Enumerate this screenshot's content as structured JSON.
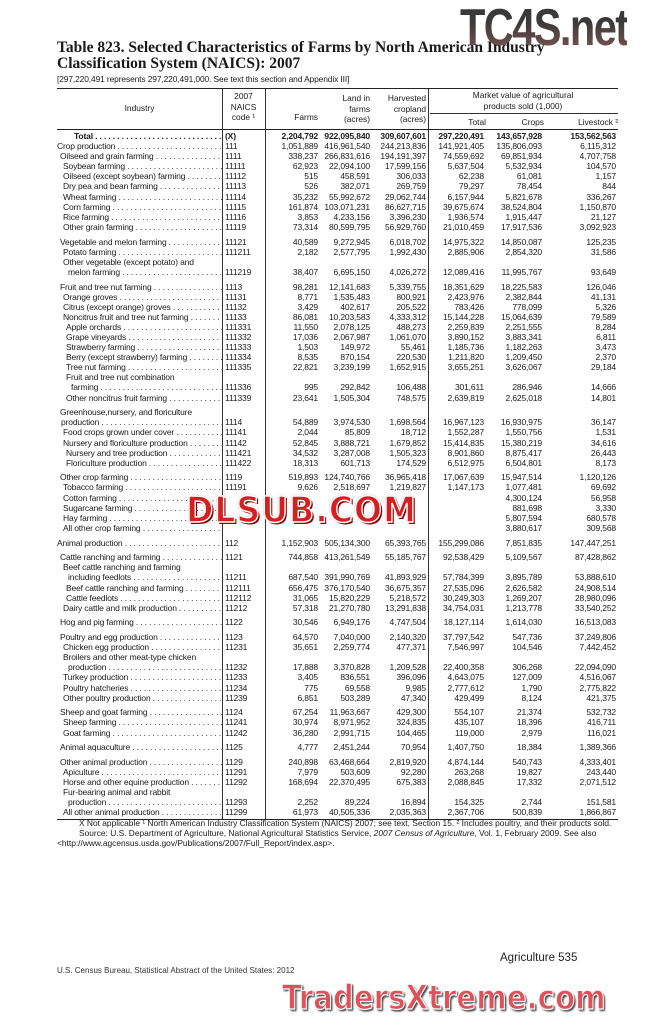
{
  "title": "Table 823. Selected Characteristics of Farms by North American Industry Classification System (NAICS): 2007",
  "subtitle": "[297,220,491 represents 297,220,491,000. See text this section and Appendix III]",
  "headers": {
    "industry": "Industry",
    "naics": [
      "2007",
      "NAICS",
      "code ¹"
    ],
    "farms": "Farms",
    "land": [
      "Land in",
      "farms",
      "(acres)"
    ],
    "harvested": [
      "Harvested",
      "cropland",
      "(acres)"
    ],
    "market": [
      "Market value of agricultural",
      "products sold (1,000)"
    ],
    "total": "Total",
    "crops": "Crops",
    "livestock": "Livestock ²"
  },
  "groups": [
    [
      {
        "label": "Total",
        "code": "(X)",
        "v": [
          "2,204,792",
          "922,095,840",
          "309,607,601",
          "297,220,491",
          "143,657,928",
          "153,562,563"
        ],
        "lvl": "total",
        "bold": true
      },
      {
        "label": "Crop production",
        "code": "111",
        "v": [
          "1,051,889",
          "416,961,540",
          "244,213,836",
          "141,921,405",
          "135,806,093",
          "6,115,312"
        ],
        "lvl": 0
      },
      {
        "label": "Oilseed and grain farming",
        "code": "1111",
        "v": [
          "338,237",
          "266,831,616",
          "194,191,397",
          "74,559,692",
          "69,851,934",
          "4,707,758"
        ],
        "lvl": 1
      },
      {
        "label": "Soybean farming",
        "code": "11111",
        "v": [
          "62,923",
          "22,094,100",
          "17,599,156",
          "5,637,504",
          "5,532,934",
          "104,570"
        ],
        "lvl": 2
      },
      {
        "label": "Oilseed (except soybean) farming",
        "code": "11112",
        "v": [
          "515",
          "458,591",
          "306,033",
          "62,238",
          "61,081",
          "1,157"
        ],
        "lvl": 2
      },
      {
        "label": "Dry pea and bean farming",
        "code": "11113",
        "v": [
          "526",
          "382,071",
          "269,759",
          "79,297",
          "78,454",
          "844"
        ],
        "lvl": 2
      },
      {
        "label": "Wheat farming",
        "code": "11114",
        "v": [
          "35,232",
          "55,992,672",
          "29,062,744",
          "6,157,944",
          "5,821,678",
          "336,267"
        ],
        "lvl": 2
      },
      {
        "label": "Corn farming",
        "code": "11115",
        "v": [
          "161,874",
          "103,071,231",
          "86,627,715",
          "39,675,674",
          "38,524,804",
          "1,150,870"
        ],
        "lvl": 2
      },
      {
        "label": "Rice farming",
        "code": "11116",
        "v": [
          "3,853",
          "4,233,156",
          "3,396,230",
          "1,936,574",
          "1,915,447",
          "21,127"
        ],
        "lvl": 2
      },
      {
        "label": "Other grain farming",
        "code": "11119",
        "v": [
          "73,314",
          "80,599,795",
          "56,929,760",
          "21,010,459",
          "17,917,536",
          "3,092,923"
        ],
        "lvl": 2
      }
    ],
    [
      {
        "label": "Vegetable and melon farming",
        "code": "11121",
        "v": [
          "40,589",
          "9,272,945",
          "6,018,702",
          "14,975,322",
          "14,850,087",
          "125,235"
        ],
        "lvl": 1
      },
      {
        "label": "Potato farming",
        "code": "111211",
        "v": [
          "2,182",
          "2,577,795",
          "1,992,430",
          "2,885,906",
          "2,854,320",
          "31,586"
        ],
        "lvl": 2
      },
      {
        "lead": "Other vegetable (except potato) and",
        "label": "melon farming",
        "code": "111219",
        "v": [
          "38,407",
          "6,695,150",
          "4,026,272",
          "12,089,416",
          "11,995,767",
          "93,649"
        ],
        "lvl": 2
      }
    ],
    [
      {
        "label": "Fruit and tree nut farming",
        "code": "1113",
        "v": [
          "98,281",
          "12,141,683",
          "5,339,755",
          "18,351,629",
          "18,225,583",
          "126,046"
        ],
        "lvl": 1
      },
      {
        "label": "Orange groves",
        "code": "11131",
        "v": [
          "8,771",
          "1,535,483",
          "800,921",
          "2,423,976",
          "2,382,844",
          "41,131"
        ],
        "lvl": 2
      },
      {
        "label": "Citrus (except orange) groves",
        "code": "11132",
        "v": [
          "3,429",
          "402,617",
          "205,522",
          "783,426",
          "778,099",
          "5,326"
        ],
        "lvl": 2
      },
      {
        "label": "Noncitrus fruit and tree nut farming",
        "code": "11133",
        "v": [
          "86,081",
          "10,203,583",
          "4,333,312",
          "15,144,228",
          "15,064,639",
          "79,589"
        ],
        "lvl": 2
      },
      {
        "label": "Apple orchards",
        "code": "111331",
        "v": [
          "11,550",
          "2,078,125",
          "488,273",
          "2,259,839",
          "2,251,555",
          "8,284"
        ],
        "lvl": 3
      },
      {
        "label": "Grape vineyards",
        "code": "111332",
        "v": [
          "17,036",
          "2,067,987",
          "1,061,070",
          "3,890,152",
          "3,883,341",
          "6,811"
        ],
        "lvl": 3
      },
      {
        "label": "Strawberry farming",
        "code": "111333",
        "v": [
          "1,503",
          "149,972",
          "55,461",
          "1,185,736",
          "1,182,263",
          "3,473"
        ],
        "lvl": 3
      },
      {
        "label": "Berry (except strawberry) farming",
        "code": "111334",
        "v": [
          "8,535",
          "870,154",
          "220,530",
          "1,211,820",
          "1,209,450",
          "2,370"
        ],
        "lvl": 3
      },
      {
        "label": "Tree nut farming",
        "code": "111335",
        "v": [
          "22,821",
          "3,239,199",
          "1,652,915",
          "3,655,251",
          "3,626,067",
          "29,184"
        ],
        "lvl": 3
      },
      {
        "lead": "Fruit and tree nut combination",
        "label": "farming",
        "code": "111336",
        "v": [
          "995",
          "292,842",
          "106,488",
          "301,611",
          "286,946",
          "14,666"
        ],
        "lvl": 3
      },
      {
        "label": "Other noncitrus fruit farming",
        "code": "111339",
        "v": [
          "23,641",
          "1,505,304",
          "748,575",
          "2,639,819",
          "2,625,018",
          "14,801"
        ],
        "lvl": 3
      }
    ],
    [
      {
        "lead": "Greenhouse,nursery, and floriculture",
        "label": "production",
        "code": "1114",
        "v": [
          "54,889",
          "3,974,530",
          "1,698,564",
          "16,967,123",
          "16,930,975",
          "36,147"
        ],
        "lvl": 1,
        "cont": 1
      },
      {
        "label": "Food crops grown under cover",
        "code": "11141",
        "v": [
          "2,044",
          "85,809",
          "18,712",
          "1,552,287",
          "1,550,756",
          "1,531"
        ],
        "lvl": 2
      },
      {
        "label": "Nursery and floriculture production",
        "code": "11142",
        "v": [
          "52,845",
          "3,888,721",
          "1,679,852",
          "15,414,835",
          "15,380,219",
          "34,616"
        ],
        "lvl": 2
      },
      {
        "label": "Nursery and tree production",
        "code": "111421",
        "v": [
          "34,532",
          "3,287,008",
          "1,505,323",
          "8,901,860",
          "8,875,417",
          "26,443"
        ],
        "lvl": 3
      },
      {
        "label": "Floriculture production",
        "code": "111422",
        "v": [
          "18,313",
          "601,713",
          "174,529",
          "6,512,975",
          "6,504,801",
          "8,173"
        ],
        "lvl": 3
      }
    ],
    [
      {
        "label": "Other crop farming",
        "code": "1119",
        "v": [
          "519,893",
          "124,740,766",
          "36,965,418",
          "17,067,639",
          "15,947,514",
          "1,120,126"
        ],
        "lvl": 1
      },
      {
        "label": "Tobacco farming",
        "code": "11191",
        "v": [
          "9,626",
          "2,518,697",
          "1,219,827",
          "1,147,173",
          "1,077,481",
          "69,692"
        ],
        "lvl": 2
      },
      {
        "label": "Cotton farming",
        "code": "",
        "v": [
          "",
          "",
          "",
          "",
          "4,300,124",
          "56,958"
        ],
        "lvl": 2
      },
      {
        "label": "Sugarcane farming",
        "code": "",
        "v": [
          "",
          "",
          "",
          "",
          "881,698",
          "3,330"
        ],
        "lvl": 2
      },
      {
        "label": "Hay farming",
        "code": "",
        "v": [
          "",
          "",
          "",
          "",
          "5,807,594",
          "680,578"
        ],
        "lvl": 2
      },
      {
        "label": "All other crop farming",
        "code": "",
        "v": [
          "",
          "",
          "",
          "",
          "3,880,617",
          "309,568"
        ],
        "lvl": 2
      }
    ],
    [
      {
        "label": "Animal production",
        "code": "112",
        "v": [
          "1,152,903",
          "505,134,300",
          "65,393,765",
          "155,299,086",
          "7,851,835",
          "147,447,251"
        ],
        "lvl": 0
      }
    ],
    [
      {
        "label": "Cattle ranching and farming",
        "code": "1121",
        "v": [
          "744,858",
          "413,261,549",
          "55,185,767",
          "92,538,429",
          "5,109,567",
          "87,428,862"
        ],
        "lvl": 1
      },
      {
        "lead": "Beef cattle ranching and farming",
        "label": "including feedlots",
        "code": "11211",
        "v": [
          "687,540",
          "391,990,769",
          "41,893,929",
          "57,784,399",
          "3,895,789",
          "53,888,610"
        ],
        "lvl": 2
      },
      {
        "label": "Beef cattle ranching and farming",
        "code": "112111",
        "v": [
          "656,475",
          "376,170,540",
          "36,675,357",
          "27,535,096",
          "2,626,582",
          "24,908,514"
        ],
        "lvl": 3
      },
      {
        "label": "Cattle feedlots",
        "code": "112112",
        "v": [
          "31,065",
          "15,820,229",
          "5,218,572",
          "30,249,303",
          "1,269,207",
          "28,980,096"
        ],
        "lvl": 3
      },
      {
        "label": "Dairy cattle and milk production",
        "code": "11212",
        "v": [
          "57,318",
          "21,270,780",
          "13,291,838",
          "34,754,031",
          "1,213,778",
          "33,540,252"
        ],
        "lvl": 2
      }
    ],
    [
      {
        "label": "Hog and pig farming",
        "code": "1122",
        "v": [
          "30,546",
          "6,949,176",
          "4,747,504",
          "18,127,114",
          "1,614,030",
          "16,513,083"
        ],
        "lvl": 1
      }
    ],
    [
      {
        "label": "Poultry and egg production",
        "code": "1123",
        "v": [
          "64,570",
          "7,040,000",
          "2,140,320",
          "37,797,542",
          "547,736",
          "37,249,806"
        ],
        "lvl": 1
      },
      {
        "label": "Chicken egg production",
        "code": "11231",
        "v": [
          "35,651",
          "2,259,774",
          "477,371",
          "7,546,997",
          "104,546",
          "7,442,452"
        ],
        "lvl": 2
      },
      {
        "lead": "Broilers and other meat-type chicken",
        "label": "production",
        "code": "11232",
        "v": [
          "17,888",
          "3,370,828",
          "1,209,528",
          "22,400,358",
          "306,268",
          "22,094,090"
        ],
        "lvl": 2
      },
      {
        "label": "Turkey production",
        "code": "11233",
        "v": [
          "3,405",
          "836,551",
          "396,096",
          "4,643,075",
          "127,009",
          "4,516,067"
        ],
        "lvl": 2
      },
      {
        "label": "Poultry hatcheries",
        "code": "11234",
        "v": [
          "775",
          "69,558",
          "9,985",
          "2,777,612",
          "1,790",
          "2,775,822"
        ],
        "lvl": 2
      },
      {
        "label": "Other poultry production",
        "code": "11239",
        "v": [
          "6,851",
          "503,289",
          "47,340",
          "429,499",
          "8,124",
          "421,375"
        ],
        "lvl": 2
      }
    ],
    [
      {
        "label": "Sheep and goat farming",
        "code": "1124",
        "v": [
          "67,254",
          "11,963,667",
          "429,300",
          "554,107",
          "21,374",
          "532,732"
        ],
        "lvl": 1
      },
      {
        "label": "Sheep farming",
        "code": "11241",
        "v": [
          "30,974",
          "8,971,952",
          "324,835",
          "435,107",
          "18,396",
          "416,711"
        ],
        "lvl": 2
      },
      {
        "label": "Goat farming",
        "code": "11242",
        "v": [
          "36,280",
          "2,991,715",
          "104,465",
          "119,000",
          "2,979",
          "116,021"
        ],
        "lvl": 2
      }
    ],
    [
      {
        "label": "Animal aquaculture",
        "code": "1125",
        "v": [
          "4,777",
          "2,451,244",
          "70,954",
          "1,407,750",
          "18,384",
          "1,389,366"
        ],
        "lvl": 1
      }
    ],
    [
      {
        "label": "Other animal production",
        "code": "1129",
        "v": [
          "240,898",
          "63,468,664",
          "2,819,920",
          "4,874,144",
          "540,743",
          "4,333,401"
        ],
        "lvl": 1
      },
      {
        "label": "Apiculture",
        "code": "11291",
        "v": [
          "7,979",
          "503,609",
          "92,280",
          "263,268",
          "19,827",
          "243,440"
        ],
        "lvl": 2
      },
      {
        "label": "Horse and other equine production",
        "code": "11292",
        "v": [
          "168,694",
          "22,370,495",
          "675,383",
          "2,088,845",
          "17,332",
          "2,071,512"
        ],
        "lvl": 2
      },
      {
        "lead": "Fur-bearing animal and rabbit",
        "label": "production",
        "code": "11293",
        "v": [
          "2,252",
          "89,224",
          "16,894",
          "154,325",
          "2,744",
          "151,581"
        ],
        "lvl": 2
      },
      {
        "label": "All other animal production",
        "code": "11299",
        "v": [
          "61,973",
          "40,505,336",
          "2,035,363",
          "2,367,706",
          "500,839",
          "1,866,867"
        ],
        "lvl": 2
      }
    ]
  ],
  "footnotes": "X Not applicable ¹ North American Industry Classification System (NAICS) 2007; see text, Section 15. ² Includes poultry, and their products sold.",
  "source": {
    "prefix": "Source: U.S. Department of Agriculture, National Agricultural Statistics Service, ",
    "italic": "2007 Census of Agriculture",
    "suffix": ", Vol. 1, February 2009. See also <http://www.agcensus.usda.gov/Publications/2007/Full_Report/index.asp>."
  },
  "footer": {
    "left": "U.S. Census Bureau, Statistical Abstract of the United States: 2012",
    "right": "Agriculture  535"
  },
  "watermarks": [
    "TC4S.net",
    "DLSUB.COM",
    "TradersXtreme.com"
  ]
}
